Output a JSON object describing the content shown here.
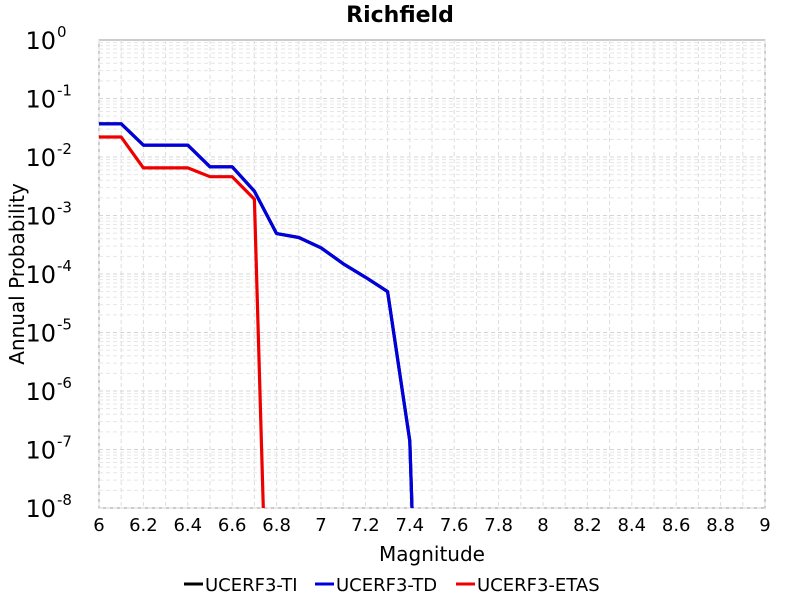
{
  "chart_data": {
    "type": "line",
    "title": "Richfield",
    "xlabel": "Magnitude",
    "ylabel": "Annual Probability",
    "xlim": [
      6,
      9
    ],
    "ylim": [
      1e-08,
      1
    ],
    "yscale": "log",
    "grid": true,
    "legend_position": "bottom",
    "x_ticks": [
      "6",
      "6.2",
      "6.4",
      "6.6",
      "6.8",
      "7",
      "7.2",
      "7.4",
      "7.6",
      "7.8",
      "8",
      "8.2",
      "8.4",
      "8.6",
      "8.8",
      "9"
    ],
    "y_ticks": [
      {
        "base": "10",
        "exp": "0",
        "value": 1
      },
      {
        "base": "10",
        "exp": "-1",
        "value": 0.1
      },
      {
        "base": "10",
        "exp": "-2",
        "value": 0.01
      },
      {
        "base": "10",
        "exp": "-3",
        "value": 0.001
      },
      {
        "base": "10",
        "exp": "-4",
        "value": 0.0001
      },
      {
        "base": "10",
        "exp": "-5",
        "value": 1e-05
      },
      {
        "base": "10",
        "exp": "-6",
        "value": 1e-06
      },
      {
        "base": "10",
        "exp": "-7",
        "value": 1e-07
      },
      {
        "base": "10",
        "exp": "-8",
        "value": 1e-08
      }
    ],
    "series": [
      {
        "name": "UCERF3-TI",
        "color": "#000000",
        "x": [
          6.0,
          6.1,
          6.2,
          6.3,
          6.4,
          6.5,
          6.6,
          6.7,
          6.8,
          6.9,
          7.0,
          7.1,
          7.2,
          7.3,
          7.4,
          7.41
        ],
        "y": [
          0.037,
          0.037,
          0.016,
          0.016,
          0.016,
          0.0068,
          0.0068,
          0.0026,
          0.00049,
          0.00042,
          0.00028,
          0.00015,
          8.8e-05,
          5e-05,
          1.4e-07,
          1e-08
        ]
      },
      {
        "name": "UCERF3-TD",
        "color": "#0000dd",
        "x": [
          6.0,
          6.1,
          6.2,
          6.3,
          6.4,
          6.5,
          6.6,
          6.7,
          6.8,
          6.9,
          7.0,
          7.1,
          7.2,
          7.3,
          7.4,
          7.41
        ],
        "y": [
          0.037,
          0.037,
          0.016,
          0.016,
          0.016,
          0.0068,
          0.0068,
          0.0026,
          0.00049,
          0.00042,
          0.00028,
          0.00015,
          8.8e-05,
          5e-05,
          1.4e-07,
          1e-08
        ]
      },
      {
        "name": "UCERF3-ETAS",
        "color": "#ee0000",
        "x": [
          6.0,
          6.1,
          6.2,
          6.3,
          6.4,
          6.5,
          6.6,
          6.7,
          6.74
        ],
        "y": [
          0.022,
          0.022,
          0.0065,
          0.0065,
          0.0065,
          0.0046,
          0.0046,
          0.0019,
          1e-08
        ]
      }
    ]
  }
}
